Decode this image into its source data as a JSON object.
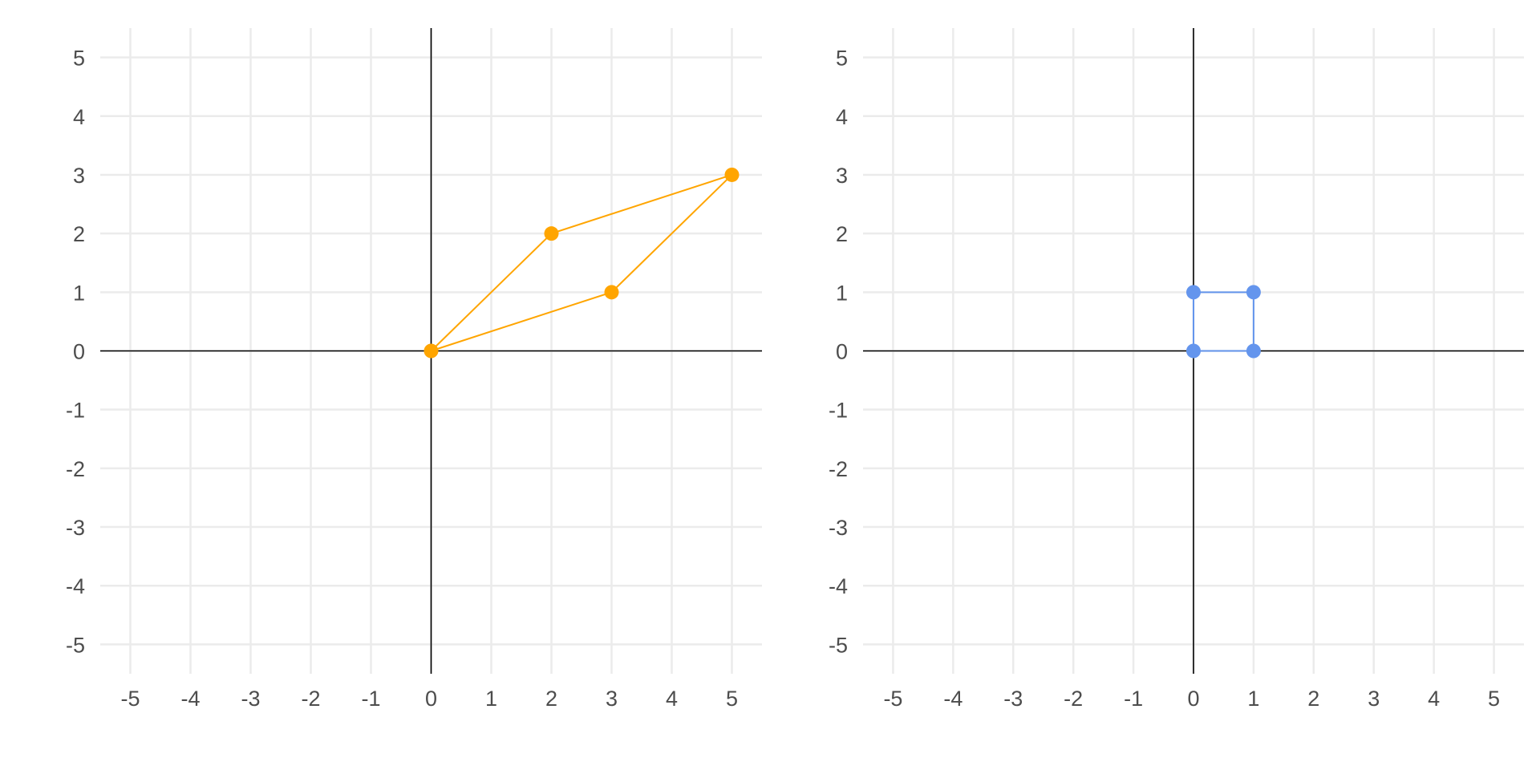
{
  "chart_data": [
    {
      "type": "scatter",
      "title": "",
      "xlabel": "",
      "ylabel": "",
      "xlim": [
        -5.5,
        5.5
      ],
      "ylim": [
        -5.5,
        5.5
      ],
      "xticks": [
        -5,
        -4,
        -3,
        -2,
        -1,
        0,
        1,
        2,
        3,
        4,
        5
      ],
      "yticks": [
        -5,
        -4,
        -3,
        -2,
        -1,
        0,
        1,
        2,
        3,
        4,
        5
      ],
      "grid": true,
      "reference_lines": {
        "x": 0,
        "y": 0
      },
      "series": [
        {
          "color": "#FFA500",
          "points": [
            {
              "x": 0,
              "y": 0
            },
            {
              "x": 3,
              "y": 1
            },
            {
              "x": 5,
              "y": 3
            },
            {
              "x": 2,
              "y": 2
            }
          ],
          "outline": [
            {
              "x": 0,
              "y": 0
            },
            {
              "x": 3,
              "y": 1
            },
            {
              "x": 5,
              "y": 3
            },
            {
              "x": 2,
              "y": 2
            },
            {
              "x": 0,
              "y": 0
            }
          ]
        }
      ]
    },
    {
      "type": "scatter",
      "title": "",
      "xlabel": "",
      "ylabel": "",
      "xlim": [
        -5.5,
        5.5
      ],
      "ylim": [
        -5.5,
        5.5
      ],
      "xticks": [
        -5,
        -4,
        -3,
        -2,
        -1,
        0,
        1,
        2,
        3,
        4,
        5
      ],
      "yticks": [
        -5,
        -4,
        -3,
        -2,
        -1,
        0,
        1,
        2,
        3,
        4,
        5
      ],
      "grid": true,
      "reference_lines": {
        "x": 0,
        "y": 0
      },
      "series": [
        {
          "color": "#6495ED",
          "points": [
            {
              "x": 0,
              "y": 0
            },
            {
              "x": 1,
              "y": 0
            },
            {
              "x": 1,
              "y": 1
            },
            {
              "x": 0,
              "y": 1
            }
          ],
          "outline": [
            {
              "x": 0,
              "y": 0
            },
            {
              "x": 1,
              "y": 0
            },
            {
              "x": 1,
              "y": 1
            },
            {
              "x": 0,
              "y": 1
            },
            {
              "x": 0,
              "y": 0
            }
          ]
        }
      ]
    }
  ]
}
